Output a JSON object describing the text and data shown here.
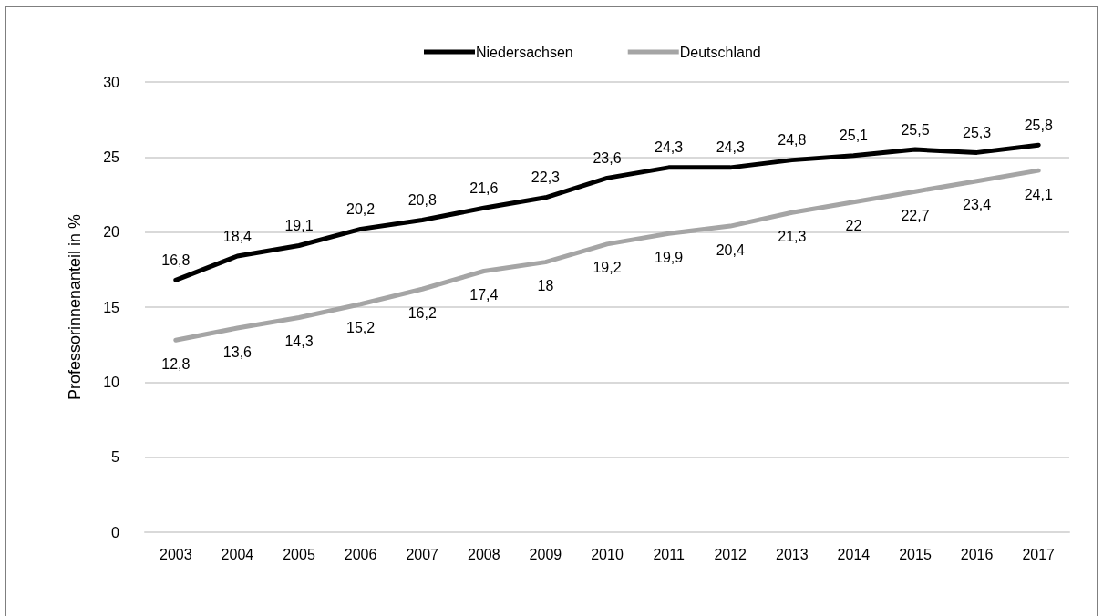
{
  "chart_data": {
    "type": "line",
    "ylabel": "Professorinnenanteil in %",
    "categories": [
      "2003",
      "2004",
      "2005",
      "2006",
      "2007",
      "2008",
      "2009",
      "2010",
      "2011",
      "2012",
      "2013",
      "2014",
      "2015",
      "2016",
      "2017"
    ],
    "series": [
      {
        "name": "Niedersachsen",
        "color": "#000000",
        "values": [
          16.8,
          18.4,
          19.1,
          20.2,
          20.8,
          21.6,
          22.3,
          23.6,
          24.3,
          24.3,
          24.8,
          25.1,
          25.5,
          25.3,
          25.8
        ],
        "value_labels": [
          "16,8",
          "18,4",
          "19,1",
          "20,2",
          "20,8",
          "21,6",
          "22,3",
          "23,6",
          "24,3",
          "24,3",
          "24,8",
          "25,1",
          "25,5",
          "25,3",
          "25,8"
        ]
      },
      {
        "name": "Deutschland",
        "color": "#a5a5a5",
        "values": [
          12.8,
          13.6,
          14.3,
          15.2,
          16.2,
          17.4,
          18,
          19.2,
          19.9,
          20.4,
          21.3,
          22,
          22.7,
          23.4,
          24.1
        ],
        "value_labels": [
          "12,8",
          "13,6",
          "14,3",
          "15,2",
          "16,2",
          "17,4",
          "18",
          "19,2",
          "19,9",
          "20,4",
          "21,3",
          "22",
          "22,7",
          "23,4",
          "24,1"
        ]
      }
    ],
    "ylim": [
      0,
      30
    ],
    "yticks": [
      0,
      5,
      10,
      15,
      20,
      25,
      30
    ],
    "grid": "y",
    "legend": "top",
    "marker": "none",
    "line_style": "solid"
  }
}
